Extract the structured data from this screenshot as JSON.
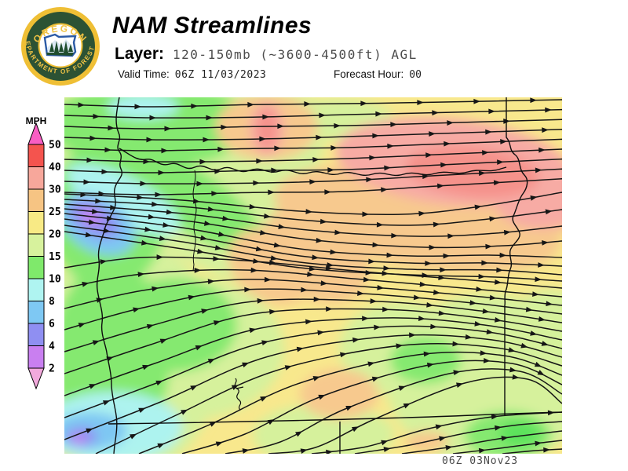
{
  "header": {
    "title": "NAM Streamlines",
    "layer_label": "Layer:",
    "layer_value": "120-150mb (~3600-4500ft) AGL",
    "valid_label": "Valid Time:",
    "valid_value": "06Z 11/03/2023",
    "forecast_hour_label": "Forecast Hour:",
    "forecast_hour_value": "00"
  },
  "logo": {
    "org_top": "OREGON",
    "org_bottom": "DEPARTMENT OF FORESTRY"
  },
  "legend": {
    "unit": "MPH",
    "ticks": [
      "50",
      "40",
      "30",
      "25",
      "20",
      "15",
      "10",
      "8",
      "6",
      "4",
      "2"
    ],
    "segment_colors": [
      "#F4544E",
      "#F7A79B",
      "#F6C483",
      "#F8EA85",
      "#D7F29D",
      "#7FE96B",
      "#AFF4F1",
      "#7EC8F3",
      "#8F8FF2",
      "#C97FF0"
    ],
    "segment_colors_note": "top-to-bottom between ticks",
    "all_band_colors": [
      "#F85EC3",
      "#F4544E",
      "#F7A79B",
      "#F6C483",
      "#F8EA85",
      "#D7F29D",
      "#7FE96B",
      "#AFF4F1",
      "#7EC8F3",
      "#8F8FF2",
      "#C97FF0",
      "#F2A9DC"
    ],
    "tip_top_color": "#F85EC3",
    "tip_bottom_color": "#F2A9DC"
  },
  "map_palette": {
    "base_yellow": "#F8E88D",
    "light_green": "#D6F19C",
    "green": "#85E970",
    "bright_green": "#5CE25C",
    "cyan": "#ADF3EF",
    "light_blue": "#7EC7F3",
    "blue_violet": "#9092F2",
    "purple": "#C883F0",
    "peach": "#F7C98E",
    "pink": "#F7ABA4",
    "deep_pink": "#F5928B",
    "stream_line": "#161616",
    "border_line": "#0d0d0d"
  },
  "footer": {
    "timestamp": "06Z 03Nov23"
  }
}
